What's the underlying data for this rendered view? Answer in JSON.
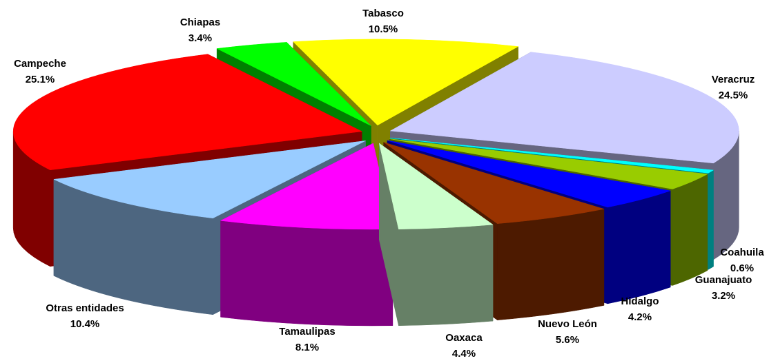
{
  "chart_data": {
    "type": "pie",
    "categories": [
      "Tabasco",
      "Veracruz",
      "Coahuila",
      "Guanajuato",
      "Hidalgo",
      "Nuevo León",
      "Oaxaca",
      "Tamaulipas",
      "Otras entidades",
      "Campeche",
      "Chiapas"
    ],
    "values": [
      10.5,
      24.5,
      0.6,
      3.2,
      4.2,
      5.6,
      4.4,
      8.1,
      10.4,
      25.1,
      3.4
    ],
    "value_labels": [
      "10.5%",
      "24.5%",
      "0.6%",
      "3.2%",
      "4.2%",
      "5.6%",
      "4.4%",
      "8.1%",
      "10.4%",
      "25.1%",
      "3.4%"
    ],
    "colors": [
      "#ffff00",
      "#ccccff",
      "#00ffff",
      "#99cc00",
      "#0000ff",
      "#993300",
      "#ccffcc",
      "#ff00ff",
      "#99ccff",
      "#ff0000",
      "#00ff00"
    ]
  }
}
